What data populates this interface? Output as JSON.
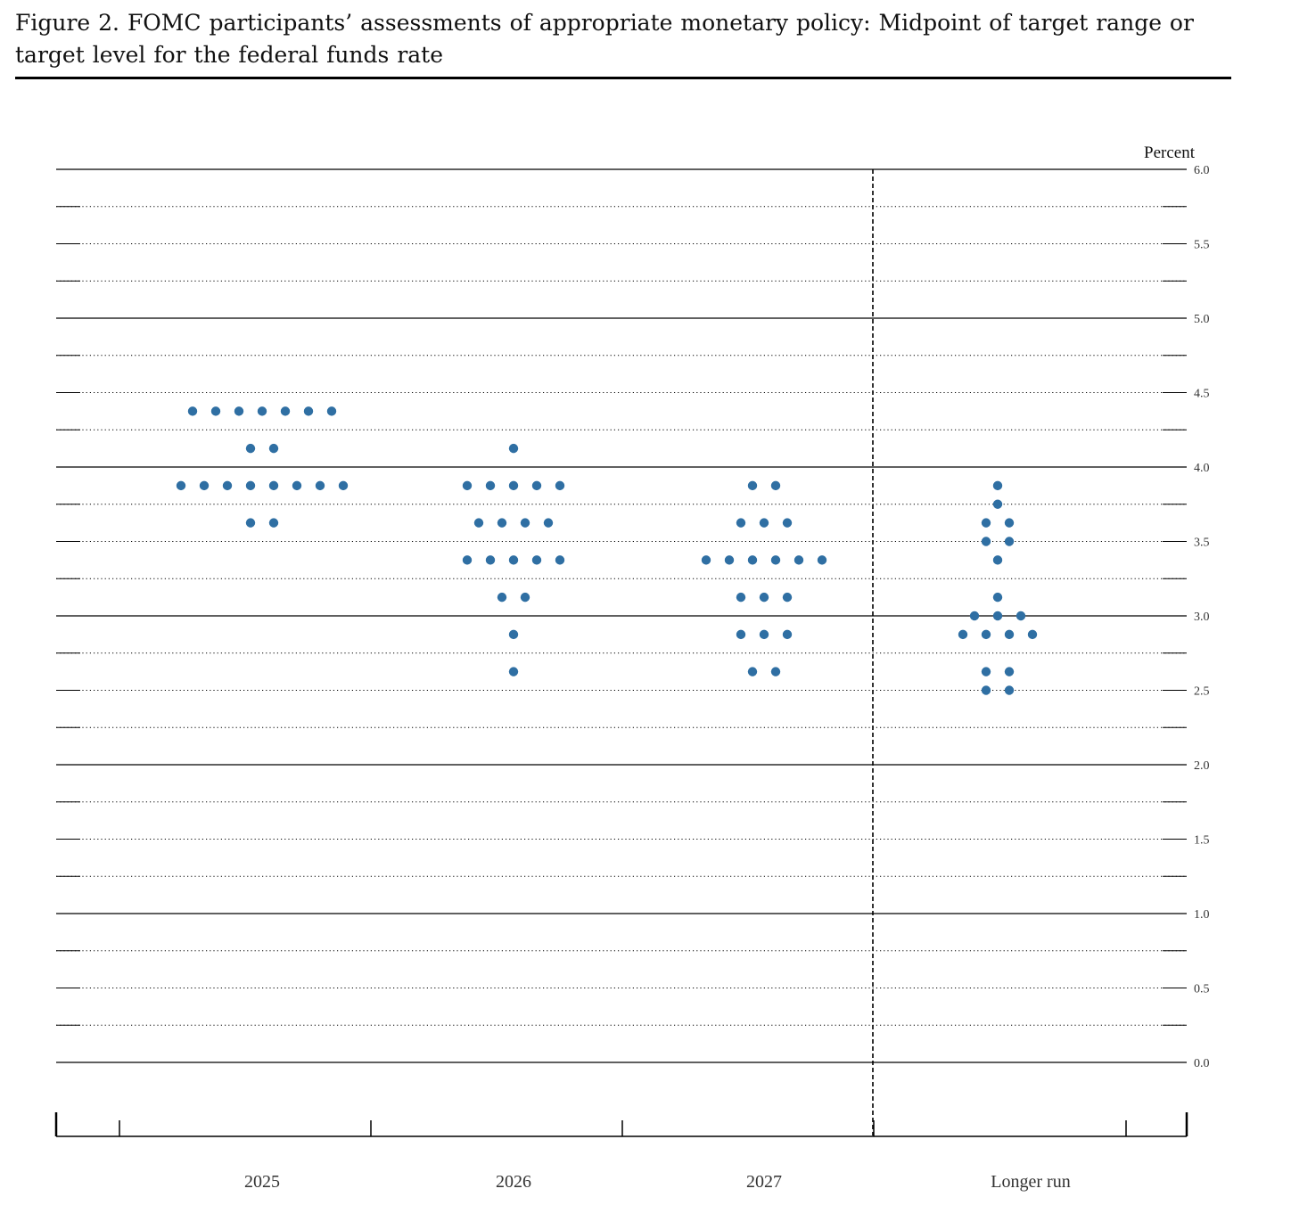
{
  "title": "Figure 2.  FOMC participants’ assessments of appropriate monetary policy:  Midpoint of target range or target level for the federal funds rate",
  "colors": {
    "dot": "#2f6fa3",
    "grid": "#000000"
  },
  "chart_data": {
    "type": "scatter",
    "unit_label": "Percent",
    "categories": [
      "2025",
      "2026",
      "2027",
      "Longer run"
    ],
    "ylim": [
      0,
      6
    ],
    "y_ticks": [
      "0.0",
      "0.5",
      "1.0",
      "1.5",
      "2.0",
      "2.5",
      "3.0",
      "3.5",
      "4.0",
      "4.5",
      "5.0",
      "5.5",
      "6.0"
    ],
    "grid": "dotted minor lines every 0.25, solid lines at each whole percent",
    "series": [
      {
        "category": "2025",
        "dots": [
          {
            "y": 4.375,
            "count": 7
          },
          {
            "y": 4.125,
            "count": 2
          },
          {
            "y": 3.875,
            "count": 8
          },
          {
            "y": 3.625,
            "count": 2
          }
        ]
      },
      {
        "category": "2026",
        "dots": [
          {
            "y": 4.125,
            "count": 1
          },
          {
            "y": 3.875,
            "count": 5
          },
          {
            "y": 3.625,
            "count": 4
          },
          {
            "y": 3.375,
            "count": 5
          },
          {
            "y": 3.125,
            "count": 2
          },
          {
            "y": 2.875,
            "count": 1
          },
          {
            "y": 2.625,
            "count": 1
          }
        ]
      },
      {
        "category": "2027",
        "dots": [
          {
            "y": 3.875,
            "count": 2
          },
          {
            "y": 3.625,
            "count": 3
          },
          {
            "y": 3.375,
            "count": 6
          },
          {
            "y": 3.125,
            "count": 3
          },
          {
            "y": 2.875,
            "count": 3
          },
          {
            "y": 2.625,
            "count": 2
          }
        ]
      },
      {
        "category": "Longer run",
        "dots": [
          {
            "y": 3.875,
            "count": 1
          },
          {
            "y": 3.75,
            "count": 1
          },
          {
            "y": 3.625,
            "count": 2
          },
          {
            "y": 3.5,
            "count": 2
          },
          {
            "y": 3.375,
            "count": 1
          },
          {
            "y": 3.125,
            "count": 1
          },
          {
            "y": 3.0,
            "count": 3
          },
          {
            "y": 2.875,
            "count": 4
          },
          {
            "y": 2.625,
            "count": 2
          },
          {
            "y": 2.5,
            "count": 2
          }
        ]
      }
    ]
  }
}
